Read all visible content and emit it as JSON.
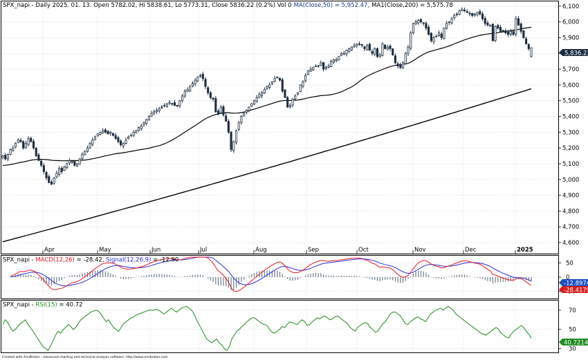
{
  "header": {
    "price_prefix": "SPX_napi - Daily 2025. 01. 13. Open 5782.02, Hi 5838.61, Lo 5773.31, Close 5836.22 (0.2%) Vol 0",
    "ma50_text": "MA(Close,50) = 5,952.47,",
    "ma200_text": "MA1(Close,200) = 5,575.78",
    "macd_prefix": "SPX_napi - ",
    "macd_text": "MACD(12,26)",
    "macd_value": " = -28.42, ",
    "signal_text": "Signal(12,26,9)",
    "signal_value": " = -12.90",
    "rsi_prefix": "SPX_napi - ",
    "rsi_text": "RSI(15)",
    "rsi_value": " = 40.72"
  },
  "footer": "Created with AmiBroker - advanced charting and technical analysis software. http://www.amibroker.com",
  "colors": {
    "candle": "#1c2d3f",
    "ma": "#000000",
    "macd": "#e8161d",
    "signal": "#2b2bd6",
    "hist": "#6a7a8a",
    "rsi": "#1e8a1e",
    "macd_badge": "#d81c1c",
    "signal_badge": "#1a4fc0",
    "rsi_badge": "#1e8a1e",
    "price_badge": "#1c2d3f",
    "grid": "#c8c8c8"
  },
  "chart_data": [
    {
      "type": "candlestick",
      "title": "SPX_napi - Daily",
      "x_labels": [
        "Apr",
        "May",
        "Jun",
        "Jul",
        "Aug",
        "Sep",
        "Oct",
        "Nov",
        "Dec",
        "2025"
      ],
      "y_ticks": [
        4600,
        4700,
        4800,
        4900,
        5000,
        5100,
        5200,
        5300,
        5400,
        5500,
        5600,
        5700,
        5800,
        5900,
        6000,
        6100
      ],
      "y_tick_labels": [
        "4,600",
        "4,700",
        "4,800",
        "4,900",
        "5,000",
        "5,100",
        "5,200",
        "5,300",
        "5,400",
        "5,500",
        "5,600",
        "5,700",
        "5,800",
        "5,900",
        "6,000",
        "6,100"
      ],
      "ylim": [
        4530,
        6130
      ],
      "last_close": 5836.22,
      "last_close_label": "5,836.22",
      "grid": true,
      "candle_closes": [
        5150,
        5130,
        5160,
        5190,
        5200,
        5230,
        5250,
        5240,
        5200,
        5230,
        5260,
        5240,
        5200,
        5150,
        5120,
        5090,
        5050,
        5010,
        4980,
        4970,
        5010,
        5040,
        5070,
        5050,
        5080,
        5100,
        5120,
        5110,
        5090,
        5100,
        5130,
        5160,
        5180,
        5200,
        5230,
        5250,
        5270,
        5290,
        5300,
        5310,
        5300,
        5290,
        5300,
        5280,
        5260,
        5240,
        5220,
        5230,
        5250,
        5270,
        5280,
        5300,
        5310,
        5330,
        5340,
        5360,
        5380,
        5400,
        5420,
        5430,
        5440,
        5450,
        5460,
        5470,
        5480,
        5490,
        5480,
        5470,
        5470,
        5500,
        5530,
        5560,
        5570,
        5590,
        5610,
        5630,
        5650,
        5660,
        5640,
        5590,
        5550,
        5520,
        5510,
        5430,
        5420,
        5460,
        5410,
        5370,
        5300,
        5190,
        5240,
        5310,
        5360,
        5400,
        5420,
        5440,
        5460,
        5480,
        5500,
        5520,
        5540,
        5550,
        5570,
        5590,
        5600,
        5620,
        5640,
        5650,
        5630,
        5560,
        5520,
        5460,
        5470,
        5510,
        5530,
        5550,
        5600,
        5620,
        5660,
        5690,
        5700,
        5710,
        5720,
        5720,
        5740,
        5700,
        5710,
        5720,
        5750,
        5760,
        5760,
        5780,
        5800,
        5800,
        5820,
        5830,
        5840,
        5850,
        5860,
        5860,
        5850,
        5830,
        5850,
        5820,
        5800,
        5830,
        5780,
        5790,
        5860,
        5830,
        5840,
        5830,
        5790,
        5740,
        5720,
        5710,
        5740,
        5800,
        5840,
        5930,
        5990,
        6000,
        6010,
        6000,
        5990,
        5960,
        5920,
        5880,
        5900,
        5910,
        5930,
        5900,
        5960,
        5990,
        6000,
        6020,
        6040,
        6050,
        6070,
        6080,
        6070,
        6060,
        6050,
        6040,
        6050,
        6060,
        6050,
        6020,
        5990,
        5980,
        5980,
        5880,
        5970,
        5960,
        5940,
        5940,
        5930,
        5920,
        5940,
        5920,
        6020,
        5980,
        5940,
        5900,
        5860,
        5830,
        5836.22
      ]
    },
    {
      "type": "line",
      "title": "MA(Close,50) / MA1(Close,200)",
      "series": [
        {
          "name": "MA(Close,50)",
          "last": 5952.47
        },
        {
          "name": "MA1(Close,200)",
          "last": 5575.78
        }
      ]
    },
    {
      "type": "line",
      "title": "SPX_napi - MACD(12,26), Signal(12,26,9)",
      "y_ticks": [
        50,
        0,
        -50
      ],
      "y_tick_labels": [
        "50",
        "0",
        "-50"
      ],
      "ylim": [
        -75,
        75
      ],
      "grid": true,
      "series": [
        {
          "name": "MACD(12,26)",
          "last": -28.42,
          "badge": "-28.4179"
        },
        {
          "name": "Signal(12,26,9)",
          "last": -12.9,
          "badge": "-12.8974"
        }
      ]
    },
    {
      "type": "line",
      "title": "SPX_napi - RSI(15)",
      "y_ticks": [
        70,
        50,
        30
      ],
      "y_tick_labels": [
        "70",
        "50",
        "30"
      ],
      "ylim": [
        26,
        80
      ],
      "grid": true,
      "series": [
        {
          "name": "RSI(15)",
          "last": 40.72,
          "badge": "40.7214",
          "values": [
            55,
            60,
            57,
            52,
            48,
            50,
            53,
            56,
            58,
            60,
            55,
            52,
            48,
            44,
            40,
            36,
            32,
            30,
            28,
            33,
            38,
            44,
            48,
            46,
            50,
            52,
            55,
            53,
            50,
            52,
            56,
            60,
            62,
            64,
            66,
            68,
            69,
            70,
            69,
            66,
            62,
            58,
            60,
            56,
            52,
            50,
            48,
            52,
            56,
            58,
            60,
            62,
            63,
            65,
            66,
            67,
            68,
            69,
            70,
            70,
            70,
            71,
            70,
            68,
            66,
            68,
            70,
            72,
            70,
            68,
            70,
            72,
            73,
            74,
            72,
            70,
            66,
            60,
            55,
            50,
            45,
            40,
            38,
            36,
            38,
            40,
            36,
            34,
            30,
            28,
            32,
            40,
            44,
            48,
            50,
            53,
            55,
            58,
            60,
            62,
            62,
            60,
            58,
            56,
            55,
            54,
            50,
            47,
            46,
            48,
            50,
            53,
            52,
            55,
            58,
            57,
            56,
            55,
            58,
            60,
            58,
            54,
            55,
            58,
            60,
            62,
            61,
            63,
            64,
            62,
            60,
            61,
            63,
            64,
            62,
            60,
            58,
            56,
            52,
            50,
            48,
            52,
            54,
            56,
            57,
            56,
            52,
            50,
            47,
            48,
            52,
            56,
            58,
            62,
            66,
            68,
            68,
            66,
            64,
            60,
            56,
            55,
            58,
            60,
            62,
            63,
            61,
            60,
            58,
            62,
            66,
            68,
            70,
            71,
            72,
            70,
            72,
            74,
            72,
            70,
            66,
            64,
            62,
            60,
            58,
            56,
            54,
            52,
            50,
            48,
            46,
            45,
            44,
            46,
            48,
            50,
            52,
            50,
            46,
            44,
            42,
            41,
            45,
            48,
            50,
            52,
            54,
            52,
            48,
            45,
            40.72
          ]
        }
      ]
    }
  ]
}
